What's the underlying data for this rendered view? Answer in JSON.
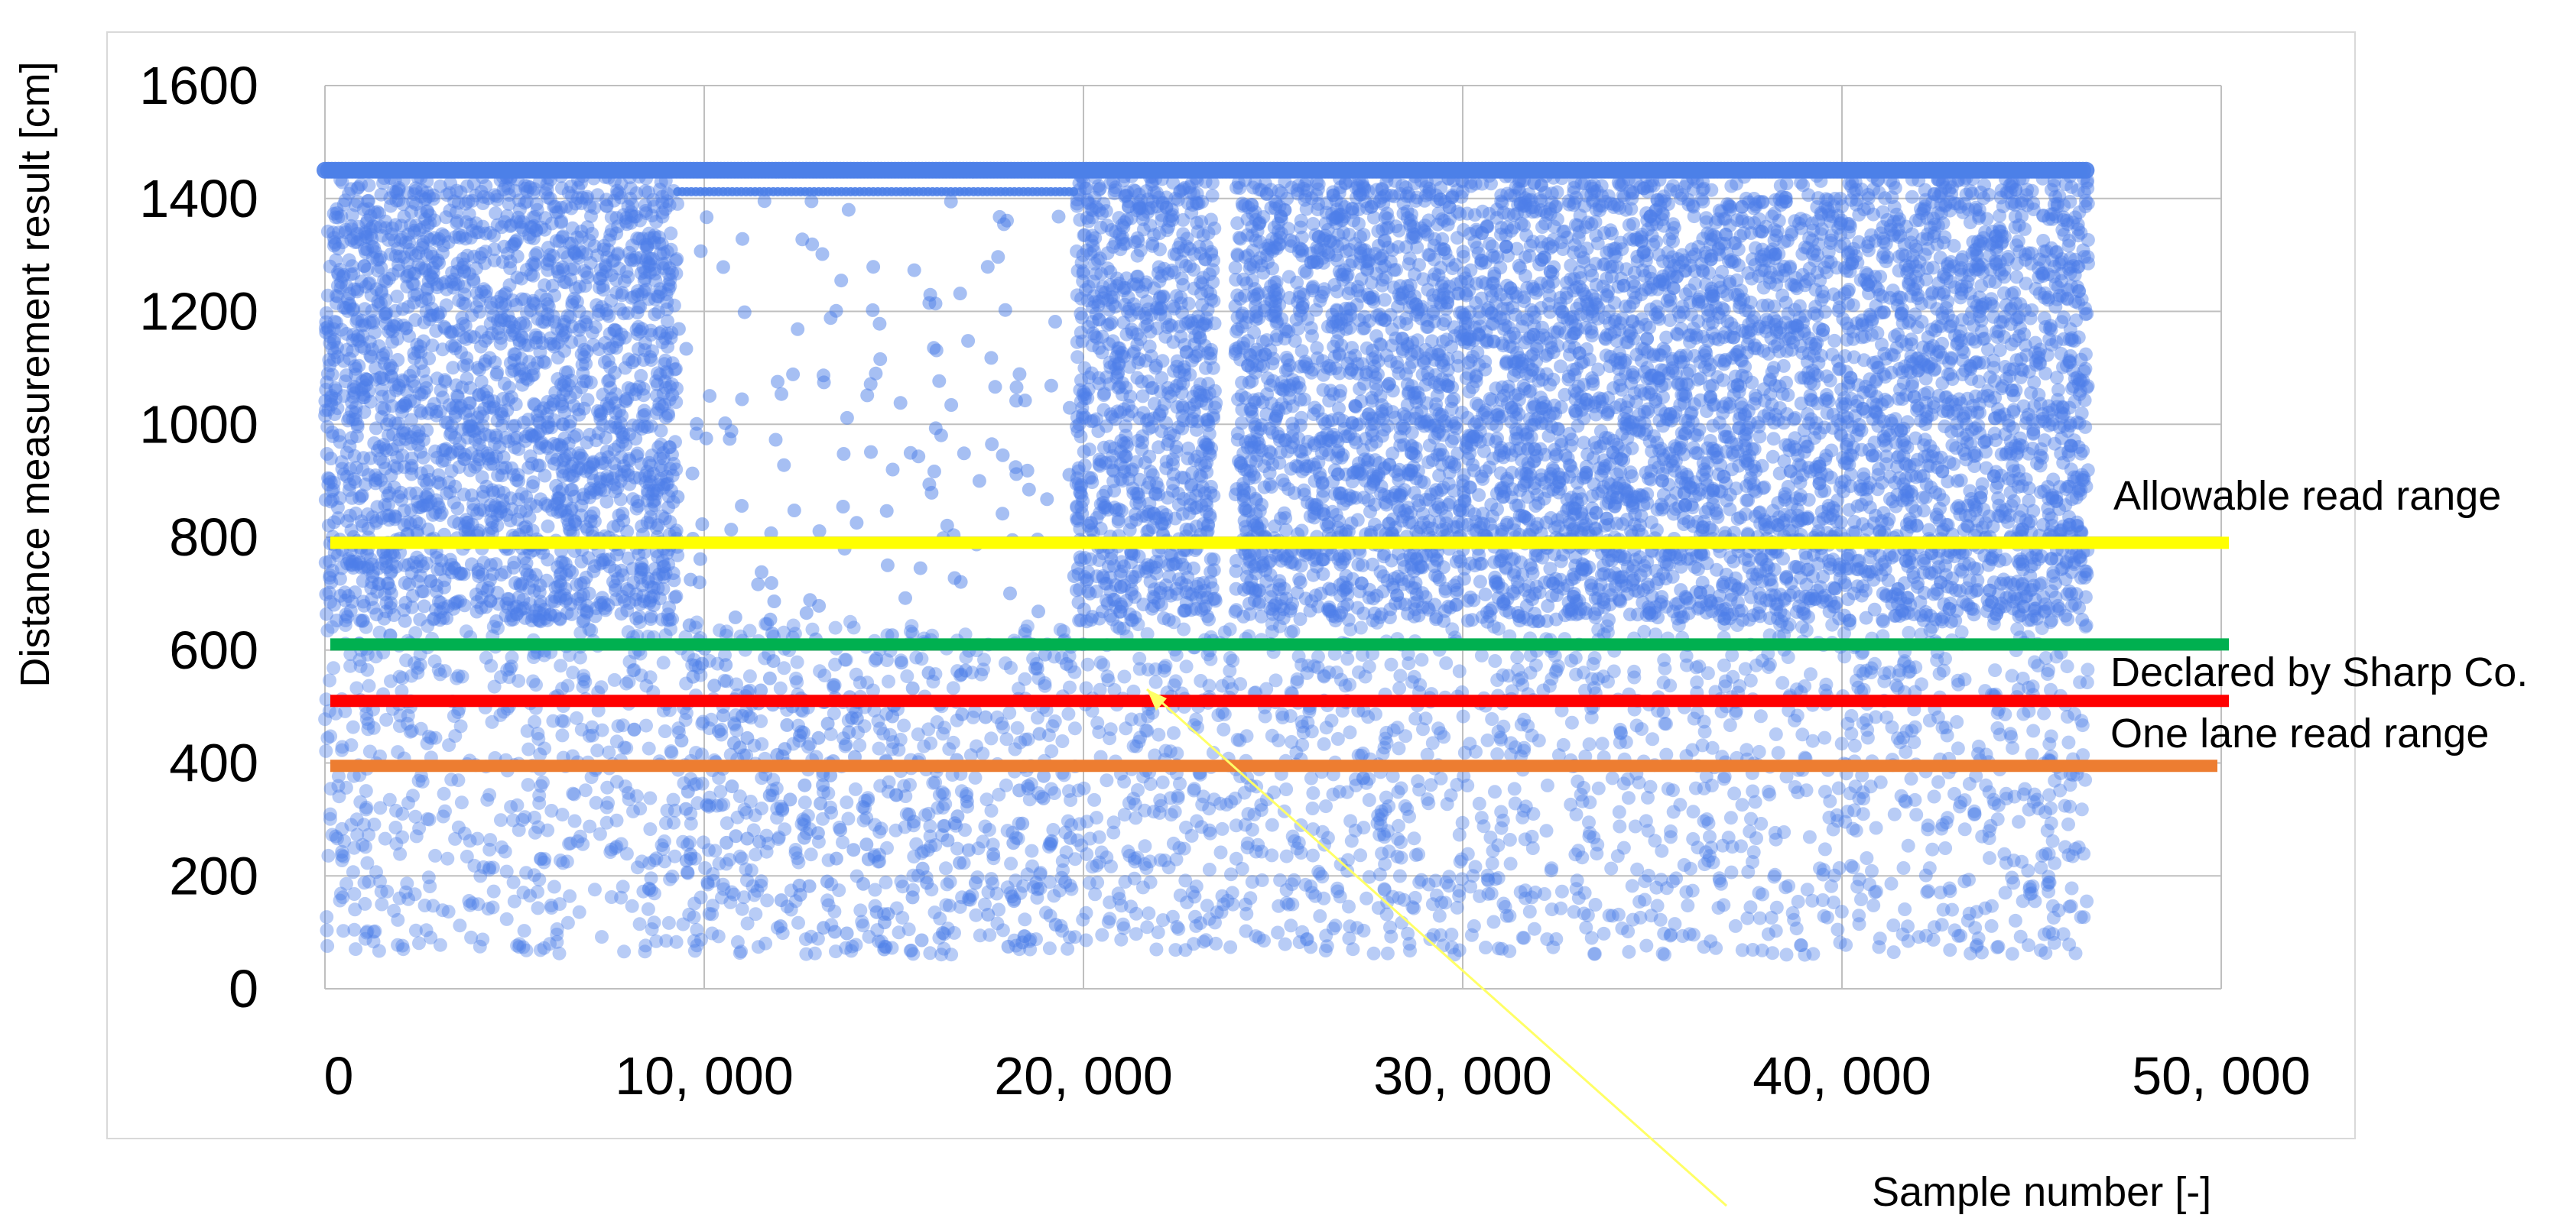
{
  "chart_data": {
    "type": "scatter",
    "title": "",
    "xlabel": "Sample number [-]",
    "ylabel": "Distance measurement result [cm]",
    "xlim": [
      0,
      50000
    ],
    "ylim": [
      0,
      1600
    ],
    "x_ticks": [
      0,
      10000,
      20000,
      30000,
      40000,
      50000
    ],
    "x_tick_labels": [
      "0",
      "10, 000",
      "20, 000",
      "30, 000",
      "40, 000",
      "50, 000"
    ],
    "y_ticks": [
      0,
      200,
      400,
      600,
      800,
      1000,
      1200,
      1400,
      1600
    ],
    "y_tick_labels": [
      "0",
      "200",
      "400",
      "600",
      "800",
      "1000",
      "1200",
      "1400",
      "1600"
    ],
    "grid": true,
    "scatter": {
      "color": "#4d7fe8",
      "x_range": [
        0,
        46500
      ],
      "saturation_value": 1450,
      "dense_segments": [
        {
          "x_from": 0,
          "x_to": 9300,
          "y_from": 650,
          "y_to": 1440
        },
        {
          "x_from": 19800,
          "x_to": 23500,
          "y_from": 650,
          "y_to": 1440
        },
        {
          "x_from": 24000,
          "x_to": 46500,
          "y_from": 650,
          "y_to": 1440
        }
      ],
      "sparse_segment": {
        "x_from": 9300,
        "x_to": 19800,
        "y_from": 0,
        "y_to": 1410
      },
      "low_band": {
        "x_from": 0,
        "x_to": 46500,
        "y_from": 60,
        "y_to": 650
      }
    },
    "reference_lines": [
      {
        "value": 790,
        "color": "#ffff00",
        "label": ""
      },
      {
        "value": 610,
        "color": "#00b050",
        "label": ""
      },
      {
        "value": 510,
        "color": "#ff0000",
        "label": ""
      },
      {
        "value": 395,
        "color": "#ed7d31",
        "label": ""
      }
    ],
    "annotations": [
      {
        "text": "Allowable read range"
      },
      {
        "text": "Declared by Sharp Co."
      },
      {
        "text": "One lane read range"
      }
    ],
    "arrow": {
      "color": "#ffff66",
      "points_to": {
        "x": 21600,
        "y": 530
      }
    }
  }
}
